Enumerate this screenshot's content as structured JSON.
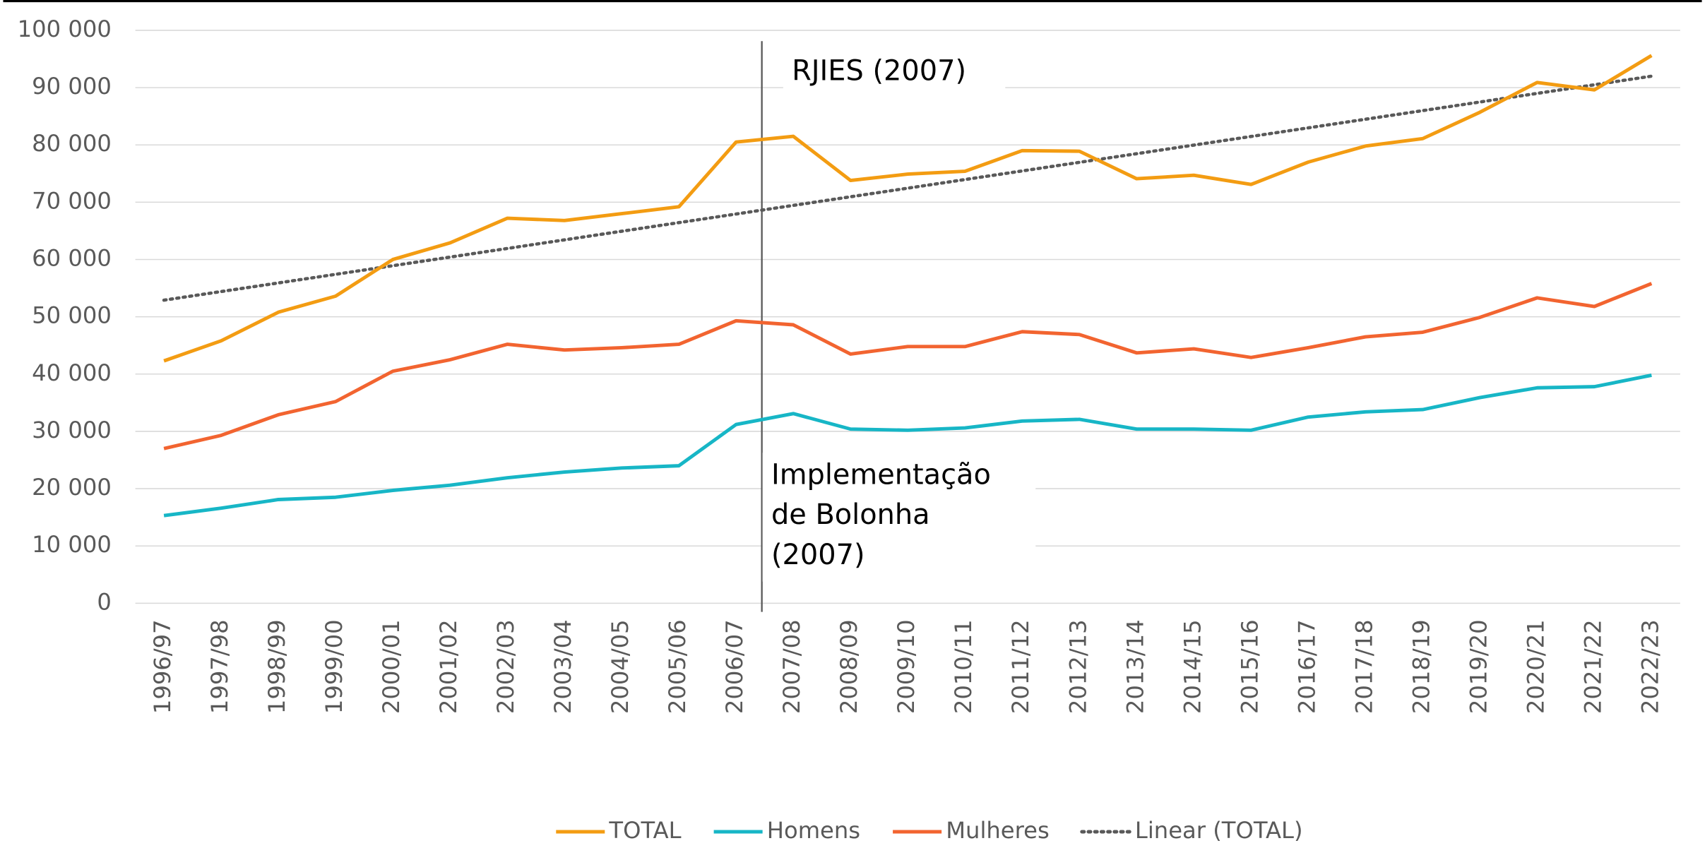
{
  "chart_data": {
    "type": "line",
    "categories": [
      "1996/97",
      "1997/98",
      "1998/99",
      "1999/00",
      "2000/01",
      "2001/02",
      "2002/03",
      "2003/04",
      "2004/05",
      "2005/06",
      "2006/07",
      "2007/08",
      "2008/09",
      "2009/10",
      "2010/11",
      "2011/12",
      "2012/13",
      "2013/14",
      "2014/15",
      "2015/16",
      "2016/17",
      "2017/18",
      "2018/19",
      "2019/20",
      "2020/21",
      "2021/22",
      "2022/23"
    ],
    "series": [
      {
        "name": "TOTAL",
        "color": "#f39c12",
        "values": [
          42300,
          45800,
          50800,
          53600,
          60000,
          62900,
          67200,
          66800,
          68000,
          69200,
          80500,
          81500,
          73800,
          74900,
          75400,
          79000,
          78900,
          74100,
          74700,
          73100,
          77000,
          79800,
          81100,
          85700,
          90900,
          89600,
          95600
        ]
      },
      {
        "name": "Homens",
        "color": "#17b6c6",
        "values": [
          15300,
          16600,
          18100,
          18500,
          19700,
          20600,
          21900,
          22900,
          23600,
          24000,
          31200,
          33100,
          30400,
          30200,
          30600,
          31800,
          32100,
          30400,
          30400,
          30200,
          32500,
          33400,
          33800,
          35900,
          37600,
          37800,
          39800
        ]
      },
      {
        "name": "Mulheres",
        "color": "#f26430",
        "values": [
          27000,
          29300,
          32900,
          35200,
          40500,
          42500,
          45200,
          44200,
          44600,
          45200,
          49300,
          48600,
          43500,
          44800,
          44800,
          47400,
          46900,
          43700,
          44400,
          42900,
          44600,
          46500,
          47300,
          49900,
          53300,
          51800,
          55800
        ]
      }
    ],
    "trendline": {
      "name": "Linear (TOTAL)",
      "color": "#595959",
      "values": [
        52900,
        92000
      ]
    },
    "annotations": [
      {
        "lines": [
          "RJIES (2007)"
        ]
      },
      {
        "lines": [
          "Implementação",
          "de Bolonha",
          "(2007)"
        ]
      }
    ],
    "ylim": [
      0,
      100000
    ],
    "yticks": [
      0,
      {
        "value": 10000,
        "label": "10 000"
      },
      {
        "value": 20000,
        "label": "20 000"
      },
      {
        "value": 30000,
        "label": "30 000"
      },
      {
        "value": 40000,
        "label": "40 000"
      },
      {
        "value": 50000,
        "label": "50 000"
      },
      {
        "value": 60000,
        "label": "60 000"
      },
      {
        "value": 70000,
        "label": "70 000"
      },
      {
        "value": 80000,
        "label": "80 000"
      },
      {
        "value": 90000,
        "label": "90 000"
      },
      {
        "value": 100000,
        "label": "100 000"
      }
    ],
    "grid": true,
    "legend": "bottom"
  }
}
